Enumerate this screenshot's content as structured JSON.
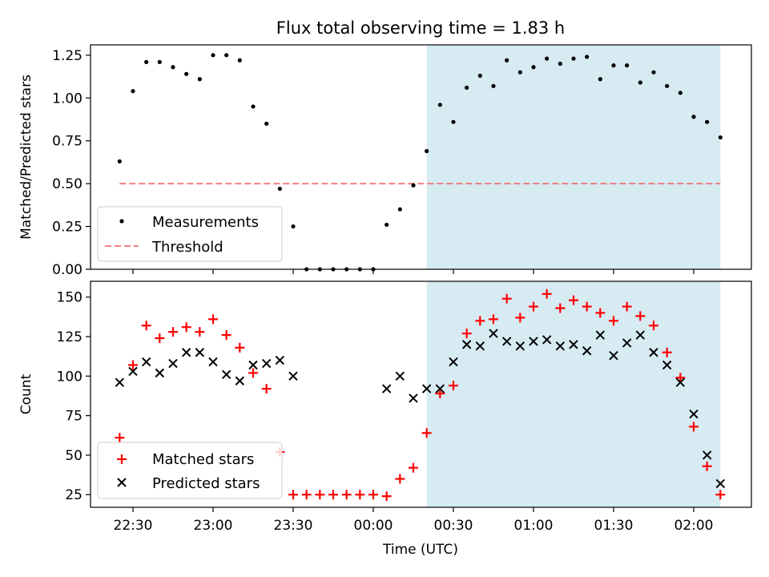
{
  "chart_data": [
    {
      "type": "scatter",
      "title": "Flux total observing time = 1.83 h",
      "ylabel": "Matched/Predicted stars",
      "xlabel": "",
      "ylim": [
        0,
        1.31
      ],
      "yticks": [
        0.0,
        0.25,
        0.5,
        0.75,
        1.0,
        1.25
      ],
      "ytick_labels": [
        "0.00",
        "0.25",
        "0.50",
        "0.75",
        "1.00",
        "1.25"
      ],
      "grid": false,
      "legend_position": "lower-left",
      "highlight_span": {
        "start": "00:20",
        "end": "02:10",
        "color": "#add8e6"
      },
      "series": [
        {
          "name": "Measurements",
          "marker": "dot",
          "color": "#000000",
          "x": [
            "22:25",
            "22:30",
            "22:35",
            "22:40",
            "22:45",
            "22:50",
            "22:55",
            "23:00",
            "23:05",
            "23:10",
            "23:15",
            "23:20",
            "23:25",
            "23:30",
            "23:35",
            "23:40",
            "23:45",
            "23:50",
            "23:55",
            "00:00",
            "00:05",
            "00:10",
            "00:15",
            "00:20",
            "00:25",
            "00:30",
            "00:35",
            "00:40",
            "00:45",
            "00:50",
            "00:55",
            "01:00",
            "01:05",
            "01:10",
            "01:15",
            "01:20",
            "01:25",
            "01:30",
            "01:35",
            "01:40",
            "01:45",
            "01:50",
            "01:55",
            "02:00",
            "02:05",
            "02:10"
          ],
          "y": [
            0.63,
            1.04,
            1.21,
            1.21,
            1.18,
            1.14,
            1.11,
            1.25,
            1.25,
            1.22,
            0.95,
            0.85,
            0.47,
            0.25,
            0,
            0,
            0,
            0,
            0,
            0,
            0.26,
            0.35,
            0.49,
            0.69,
            0.96,
            0.86,
            1.06,
            1.13,
            1.07,
            1.22,
            1.15,
            1.18,
            1.23,
            1.2,
            1.23,
            1.24,
            1.11,
            1.19,
            1.19,
            1.09,
            1.15,
            1.07,
            1.03,
            0.89,
            0.86,
            0.77
          ]
        },
        {
          "name": "Threshold",
          "type": "line",
          "style": "dashed",
          "color": "#f08080",
          "x": [
            "22:25",
            "02:10"
          ],
          "y": [
            0.5,
            0.5
          ]
        }
      ]
    },
    {
      "type": "scatter",
      "title": "",
      "ylabel": "Count",
      "xlabel": "Time (UTC)",
      "ylim": [
        17,
        160
      ],
      "yticks": [
        25,
        50,
        75,
        100,
        125,
        150
      ],
      "ytick_labels": [
        "25",
        "50",
        "75",
        "100",
        "125",
        "150"
      ],
      "xticks": [
        "22:30",
        "23:00",
        "23:30",
        "00:00",
        "00:30",
        "01:00",
        "01:30",
        "02:00"
      ],
      "xtick_labels": [
        "22:30",
        "23:00",
        "23:30",
        "00:00",
        "00:30",
        "01:00",
        "01:30",
        "02:00"
      ],
      "grid": false,
      "legend_position": "lower-left",
      "highlight_span": {
        "start": "00:20",
        "end": "02:10",
        "color": "#add8e6"
      },
      "series": [
        {
          "name": "Matched stars",
          "marker": "plus",
          "color": "#ff0000",
          "x": [
            "22:25",
            "22:30",
            "22:35",
            "22:40",
            "22:45",
            "22:50",
            "22:55",
            "23:00",
            "23:05",
            "23:10",
            "23:15",
            "23:20",
            "23:25",
            "23:30",
            "23:35",
            "23:40",
            "23:45",
            "23:50",
            "23:55",
            "00:00",
            "00:05",
            "00:10",
            "00:15",
            "00:20",
            "00:25",
            "00:30",
            "00:35",
            "00:40",
            "00:45",
            "00:50",
            "00:55",
            "01:00",
            "01:05",
            "01:10",
            "01:15",
            "01:20",
            "01:25",
            "01:30",
            "01:35",
            "01:40",
            "01:45",
            "01:50",
            "01:55",
            "02:00",
            "02:05",
            "02:10"
          ],
          "y": [
            61,
            107,
            132,
            124,
            128,
            131,
            128,
            136,
            126,
            118,
            102,
            92,
            52,
            25,
            25,
            25,
            25,
            25,
            25,
            25,
            24,
            35,
            42,
            64,
            89,
            94,
            127,
            135,
            136,
            149,
            137,
            144,
            152,
            143,
            148,
            144,
            140,
            135,
            144,
            138,
            132,
            115,
            99,
            68,
            43,
            25
          ]
        },
        {
          "name": "Predicted stars",
          "marker": "x",
          "color": "#000000",
          "x": [
            "22:25",
            "22:30",
            "22:35",
            "22:40",
            "22:45",
            "22:50",
            "22:55",
            "23:00",
            "23:05",
            "23:10",
            "23:15",
            "23:20",
            "23:25",
            "23:30",
            "00:05",
            "00:10",
            "00:15",
            "00:20",
            "00:25",
            "00:30",
            "00:35",
            "00:40",
            "00:45",
            "00:50",
            "00:55",
            "01:00",
            "01:05",
            "01:10",
            "01:15",
            "01:20",
            "01:25",
            "01:30",
            "01:35",
            "01:40",
            "01:45",
            "01:50",
            "01:55",
            "02:00",
            "02:05",
            "02:10"
          ],
          "y": [
            96,
            103,
            109,
            102,
            108,
            115,
            115,
            109,
            101,
            97,
            107,
            108,
            110,
            100,
            92,
            100,
            86,
            92,
            92,
            109,
            120,
            119,
            127,
            122,
            119,
            122,
            123,
            119,
            120,
            116,
            126,
            113,
            121,
            126,
            115,
            107,
            96,
            76,
            50,
            32
          ]
        }
      ]
    }
  ]
}
